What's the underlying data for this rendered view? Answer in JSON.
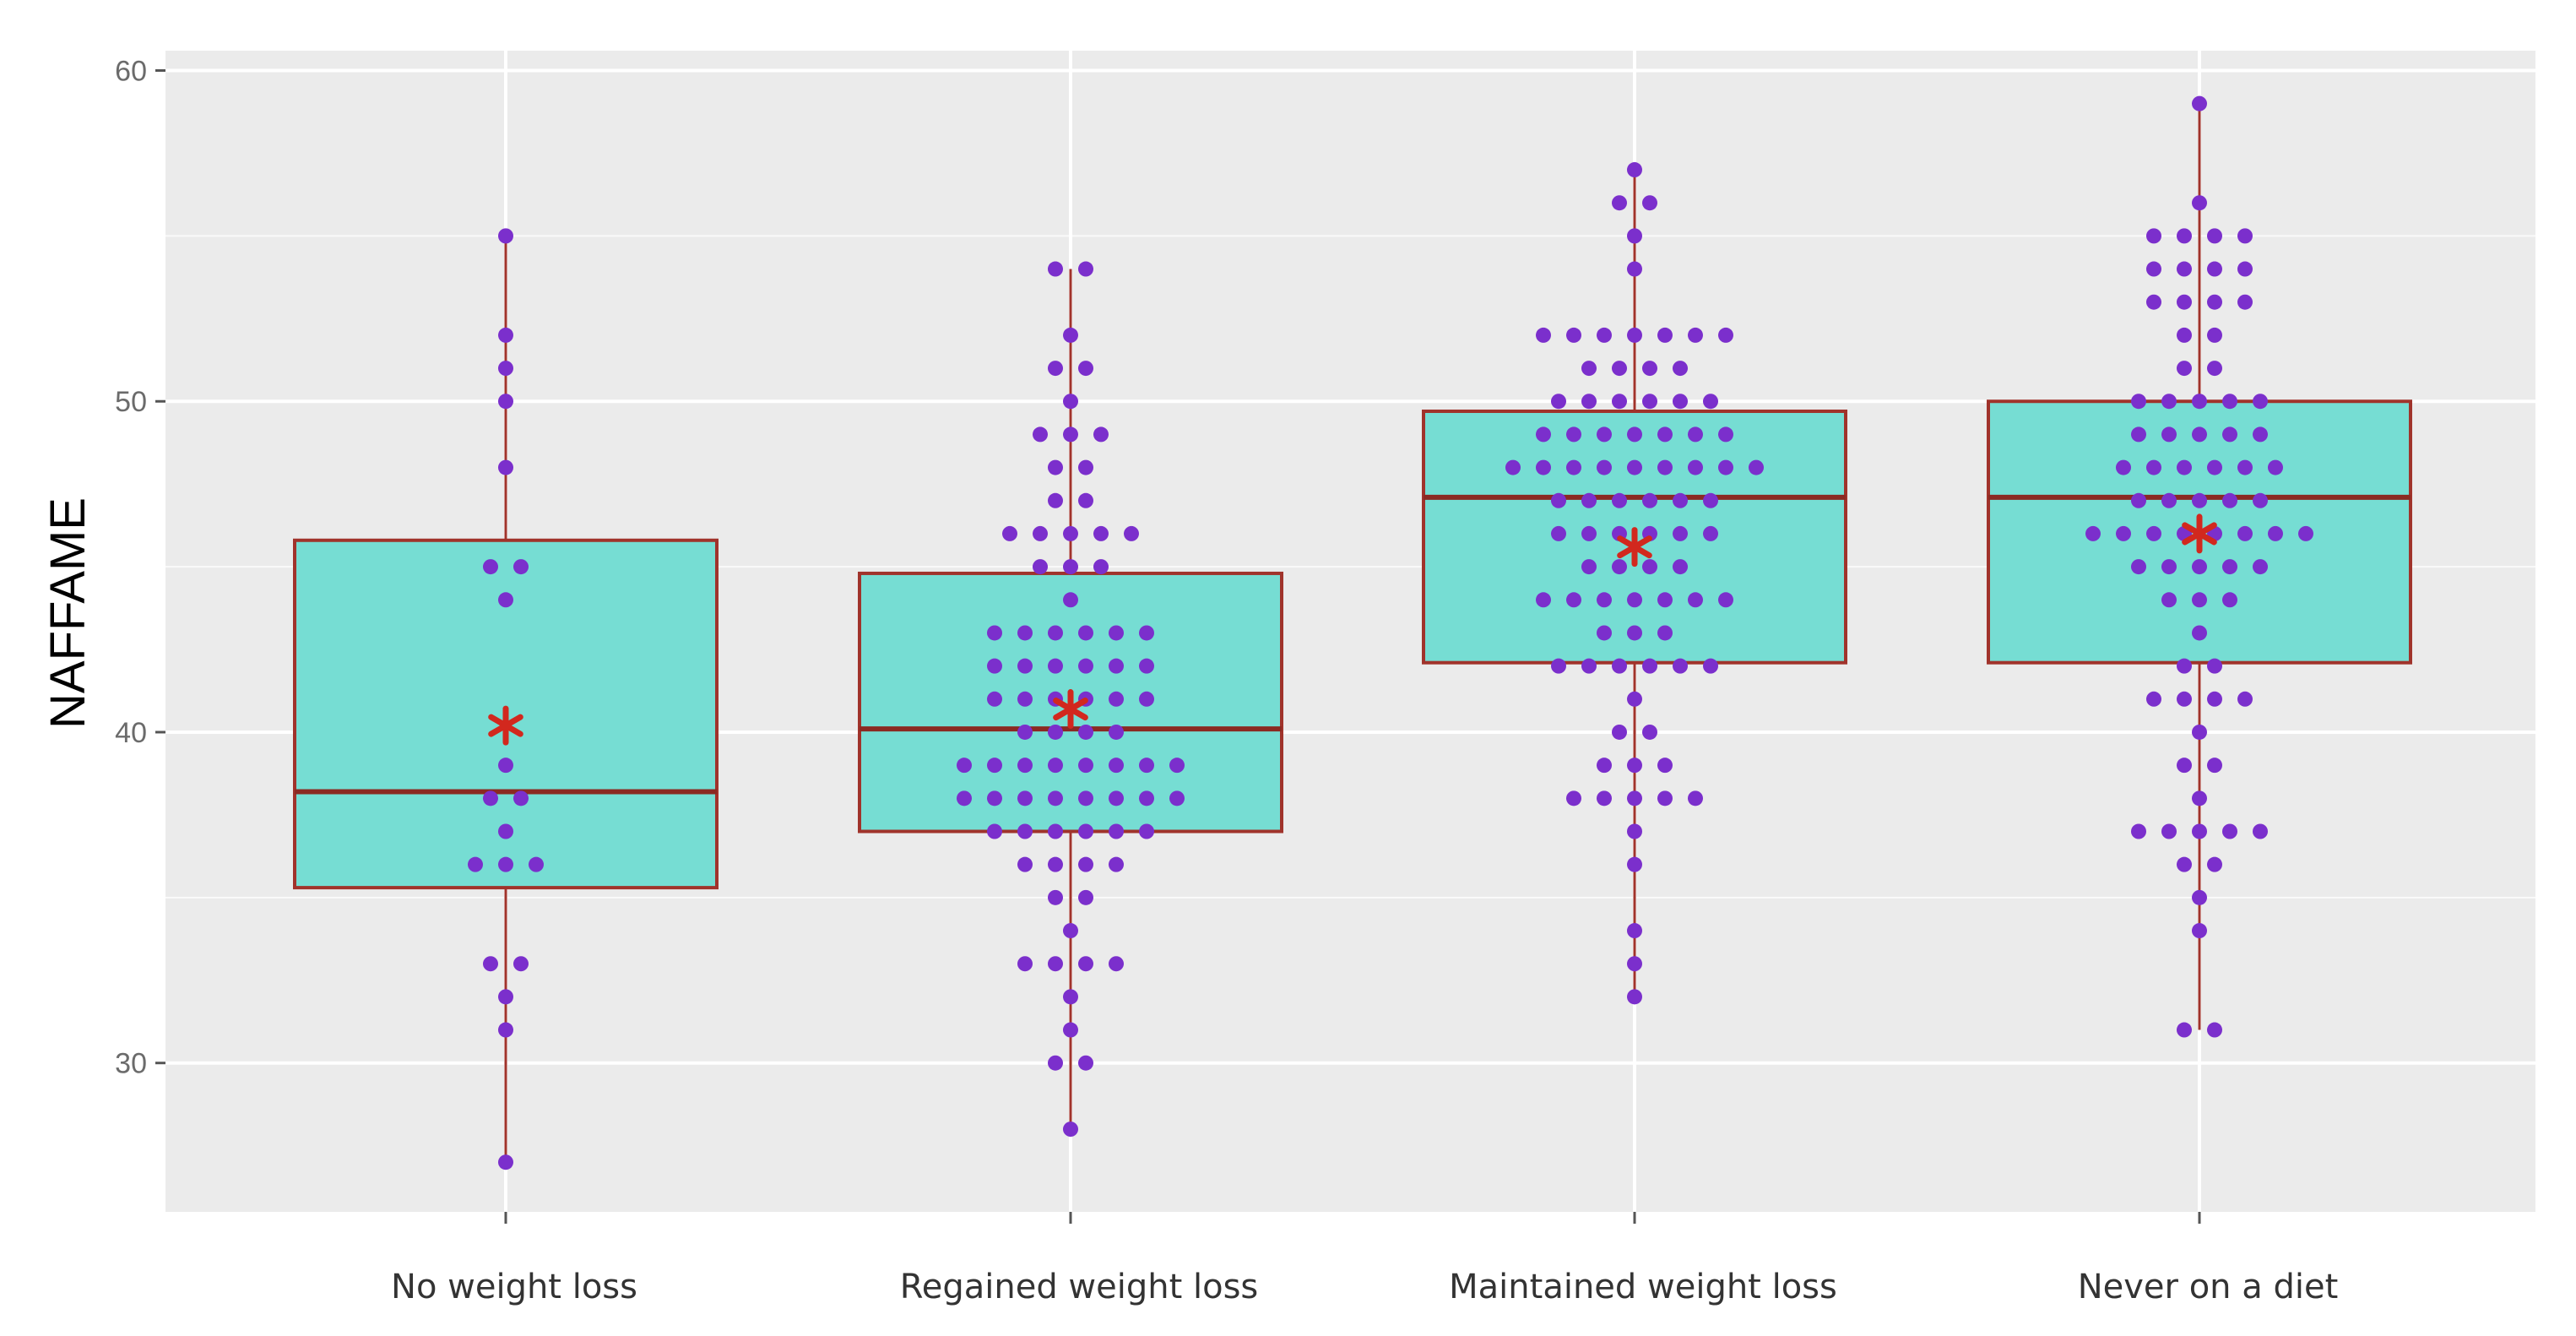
{
  "chart_data": {
    "type": "boxplot",
    "ylabel": "NAFFAME",
    "xlabel": "",
    "ylim": [
      25.5,
      60.6
    ],
    "yticks": [
      30,
      40,
      50,
      60
    ],
    "grid": true,
    "colors": {
      "panel": "#EBEBEB",
      "grid": "#FFFFFF",
      "box_fill": "#76DDD3",
      "box_line": "#A0332B",
      "median": "#8B2A22",
      "dot": "#7B2FCC",
      "mean_star": "#D2281E",
      "tick": "#6B6B6B"
    },
    "categories": [
      "No weight loss",
      "Regained weight loss",
      "Maintained weight loss",
      "Never on a diet"
    ],
    "groups": [
      {
        "name": "No weight loss",
        "q1": 35.3,
        "median": 38.2,
        "q3": 45.8,
        "whisker_low": 27,
        "whisker_high": 55,
        "mean": 40.2,
        "points": [
          {
            "y": 55,
            "n": 1
          },
          {
            "y": 52,
            "n": 1
          },
          {
            "y": 51,
            "n": 1
          },
          {
            "y": 50,
            "n": 1
          },
          {
            "y": 48,
            "n": 1
          },
          {
            "y": 45,
            "n": 2
          },
          {
            "y": 44,
            "n": 1
          },
          {
            "y": 39,
            "n": 1
          },
          {
            "y": 38,
            "n": 2
          },
          {
            "y": 37,
            "n": 1
          },
          {
            "y": 36,
            "n": 3
          },
          {
            "y": 33,
            "n": 2
          },
          {
            "y": 32,
            "n": 1
          },
          {
            "y": 31,
            "n": 1
          },
          {
            "y": 27,
            "n": 1
          }
        ]
      },
      {
        "name": "Regained weight loss",
        "q1": 37,
        "median": 40.1,
        "q3": 44.8,
        "whisker_low": 28,
        "whisker_high": 54,
        "mean": 40.7,
        "points": [
          {
            "y": 54,
            "n": 2
          },
          {
            "y": 52,
            "n": 1
          },
          {
            "y": 51,
            "n": 2
          },
          {
            "y": 50,
            "n": 1
          },
          {
            "y": 49,
            "n": 3
          },
          {
            "y": 48,
            "n": 2
          },
          {
            "y": 47,
            "n": 2
          },
          {
            "y": 46,
            "n": 5
          },
          {
            "y": 45,
            "n": 3
          },
          {
            "y": 44,
            "n": 1
          },
          {
            "y": 43,
            "n": 6
          },
          {
            "y": 42,
            "n": 6
          },
          {
            "y": 41,
            "n": 6
          },
          {
            "y": 40,
            "n": 4
          },
          {
            "y": 39,
            "n": 8
          },
          {
            "y": 38,
            "n": 8
          },
          {
            "y": 37,
            "n": 6
          },
          {
            "y": 36,
            "n": 4
          },
          {
            "y": 35,
            "n": 2
          },
          {
            "y": 34,
            "n": 1
          },
          {
            "y": 33,
            "n": 4
          },
          {
            "y": 32,
            "n": 1
          },
          {
            "y": 31,
            "n": 1
          },
          {
            "y": 30,
            "n": 2
          },
          {
            "y": 28,
            "n": 1
          }
        ]
      },
      {
        "name": "Maintained weight loss",
        "q1": 42.1,
        "median": 47.1,
        "q3": 49.7,
        "whisker_low": 32,
        "whisker_high": 57,
        "mean": 45.6,
        "points": [
          {
            "y": 57,
            "n": 1
          },
          {
            "y": 56,
            "n": 2
          },
          {
            "y": 55,
            "n": 1
          },
          {
            "y": 54,
            "n": 1
          },
          {
            "y": 52,
            "n": 7
          },
          {
            "y": 51,
            "n": 4
          },
          {
            "y": 50,
            "n": 6
          },
          {
            "y": 49,
            "n": 7
          },
          {
            "y": 48,
            "n": 9
          },
          {
            "y": 47,
            "n": 6
          },
          {
            "y": 46,
            "n": 6
          },
          {
            "y": 45,
            "n": 4
          },
          {
            "y": 44,
            "n": 7
          },
          {
            "y": 43,
            "n": 3
          },
          {
            "y": 42,
            "n": 6
          },
          {
            "y": 41,
            "n": 1
          },
          {
            "y": 40,
            "n": 2
          },
          {
            "y": 39,
            "n": 3
          },
          {
            "y": 38,
            "n": 5
          },
          {
            "y": 37,
            "n": 1
          },
          {
            "y": 36,
            "n": 1
          },
          {
            "y": 34,
            "n": 1
          },
          {
            "y": 33,
            "n": 1
          },
          {
            "y": 32,
            "n": 1
          }
        ]
      },
      {
        "name": "Never on a diet",
        "q1": 42.1,
        "median": 47.1,
        "q3": 50.0,
        "whisker_low": 31,
        "whisker_high": 59,
        "mean": 46.0,
        "points": [
          {
            "y": 59,
            "n": 1
          },
          {
            "y": 56,
            "n": 1
          },
          {
            "y": 55,
            "n": 4
          },
          {
            "y": 54,
            "n": 4
          },
          {
            "y": 53,
            "n": 4
          },
          {
            "y": 52,
            "n": 2
          },
          {
            "y": 51,
            "n": 2
          },
          {
            "y": 50,
            "n": 5
          },
          {
            "y": 49,
            "n": 5
          },
          {
            "y": 48,
            "n": 6
          },
          {
            "y": 47,
            "n": 5
          },
          {
            "y": 46,
            "n": 8
          },
          {
            "y": 45,
            "n": 5
          },
          {
            "y": 44,
            "n": 3
          },
          {
            "y": 43,
            "n": 1
          },
          {
            "y": 42,
            "n": 2
          },
          {
            "y": 41,
            "n": 4
          },
          {
            "y": 40,
            "n": 1
          },
          {
            "y": 39,
            "n": 2
          },
          {
            "y": 38,
            "n": 1
          },
          {
            "y": 37,
            "n": 5
          },
          {
            "y": 36,
            "n": 2
          },
          {
            "y": 35,
            "n": 1
          },
          {
            "y": 34,
            "n": 1
          },
          {
            "y": 31,
            "n": 2
          }
        ]
      }
    ]
  }
}
